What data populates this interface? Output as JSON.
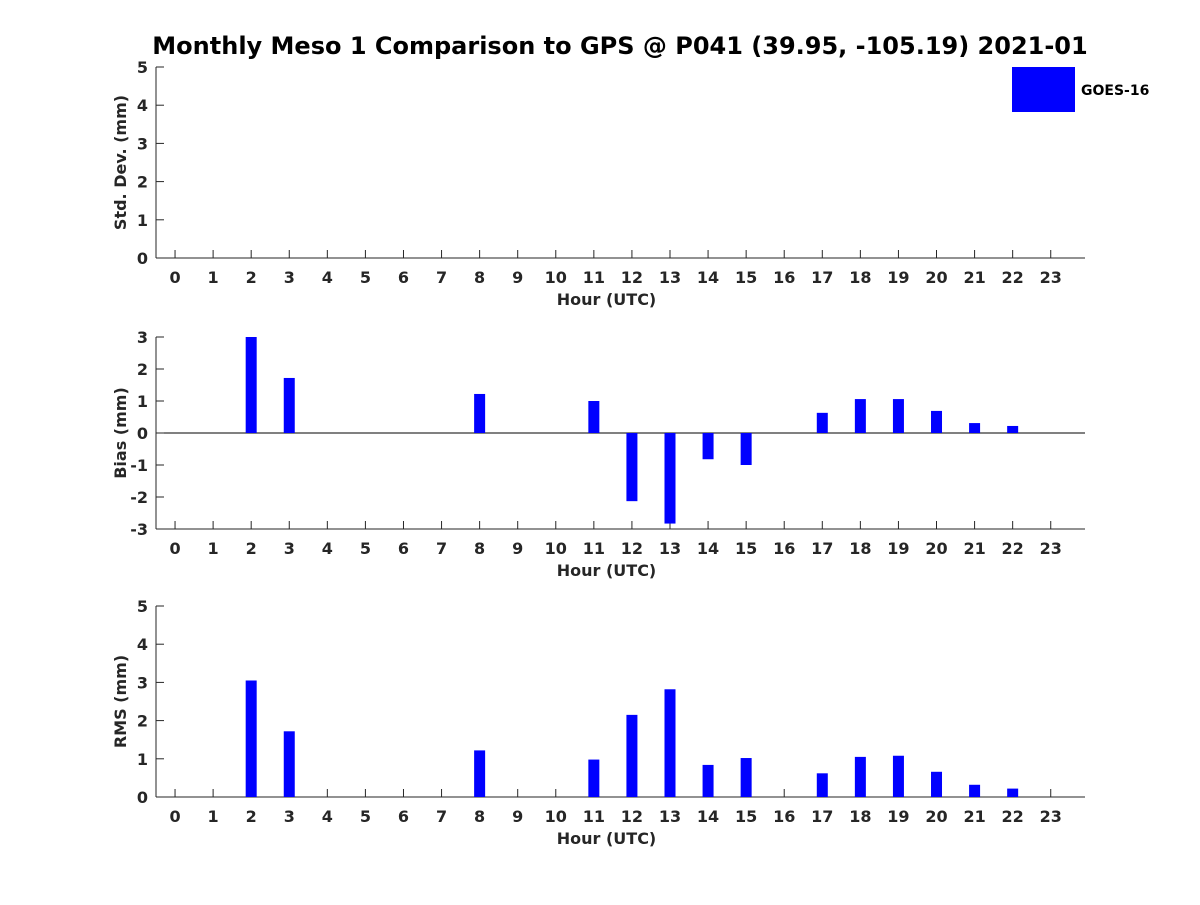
{
  "title": "Monthly Meso 1 Comparison to GPS @ P041 (39.95, -105.19) 2021-01",
  "legend": {
    "label": "GOES-16",
    "placement": "top-right"
  },
  "colors": {
    "bar": "#0000ff",
    "axis": "#262626"
  },
  "chart_data": [
    {
      "type": "bar",
      "series_name": "GOES-16",
      "xlabel": "Hour (UTC)",
      "ylabel": "Std. Dev. (mm)",
      "ylim": [
        0,
        5
      ],
      "yticks": [
        0,
        1,
        2,
        3,
        4,
        5
      ],
      "xlim": [
        -0.5,
        23.9
      ],
      "categories": [
        "0",
        "1",
        "2",
        "3",
        "4",
        "5",
        "6",
        "7",
        "8",
        "9",
        "10",
        "11",
        "12",
        "13",
        "14",
        "15",
        "16",
        "17",
        "18",
        "19",
        "20",
        "21",
        "22",
        "23"
      ],
      "values": [
        null,
        null,
        null,
        null,
        null,
        null,
        null,
        null,
        null,
        null,
        null,
        null,
        null,
        null,
        null,
        null,
        null,
        null,
        null,
        null,
        null,
        null,
        null,
        null
      ],
      "grid": false
    },
    {
      "type": "bar",
      "series_name": "GOES-16",
      "xlabel": "Hour (UTC)",
      "ylabel": "Bias (mm)",
      "ylim": [
        -3,
        3
      ],
      "yticks": [
        -3,
        -2,
        -1,
        0,
        1,
        2,
        3
      ],
      "xlim": [
        -0.5,
        23.9
      ],
      "categories": [
        "0",
        "1",
        "2",
        "3",
        "4",
        "5",
        "6",
        "7",
        "8",
        "9",
        "10",
        "11",
        "12",
        "13",
        "14",
        "15",
        "16",
        "17",
        "18",
        "19",
        "20",
        "21",
        "22",
        "23"
      ],
      "values": [
        null,
        null,
        3.0,
        1.72,
        null,
        null,
        null,
        null,
        1.22,
        null,
        null,
        1.0,
        -2.13,
        -2.83,
        -0.82,
        -1.0,
        null,
        0.63,
        1.06,
        1.06,
        0.69,
        0.31,
        0.22,
        null
      ],
      "zero_line": true,
      "grid": false
    },
    {
      "type": "bar",
      "series_name": "GOES-16",
      "xlabel": "Hour (UTC)",
      "ylabel": "RMS (mm)",
      "ylim": [
        0,
        5
      ],
      "yticks": [
        0,
        1,
        2,
        3,
        4,
        5
      ],
      "xlim": [
        -0.5,
        23.9
      ],
      "categories": [
        "0",
        "1",
        "2",
        "3",
        "4",
        "5",
        "6",
        "7",
        "8",
        "9",
        "10",
        "11",
        "12",
        "13",
        "14",
        "15",
        "16",
        "17",
        "18",
        "19",
        "20",
        "21",
        "22",
        "23"
      ],
      "values": [
        null,
        null,
        3.05,
        1.72,
        null,
        null,
        null,
        null,
        1.22,
        null,
        null,
        0.98,
        2.15,
        2.82,
        0.84,
        1.02,
        null,
        0.62,
        1.05,
        1.08,
        0.66,
        0.32,
        0.22,
        null
      ],
      "grid": false
    }
  ]
}
